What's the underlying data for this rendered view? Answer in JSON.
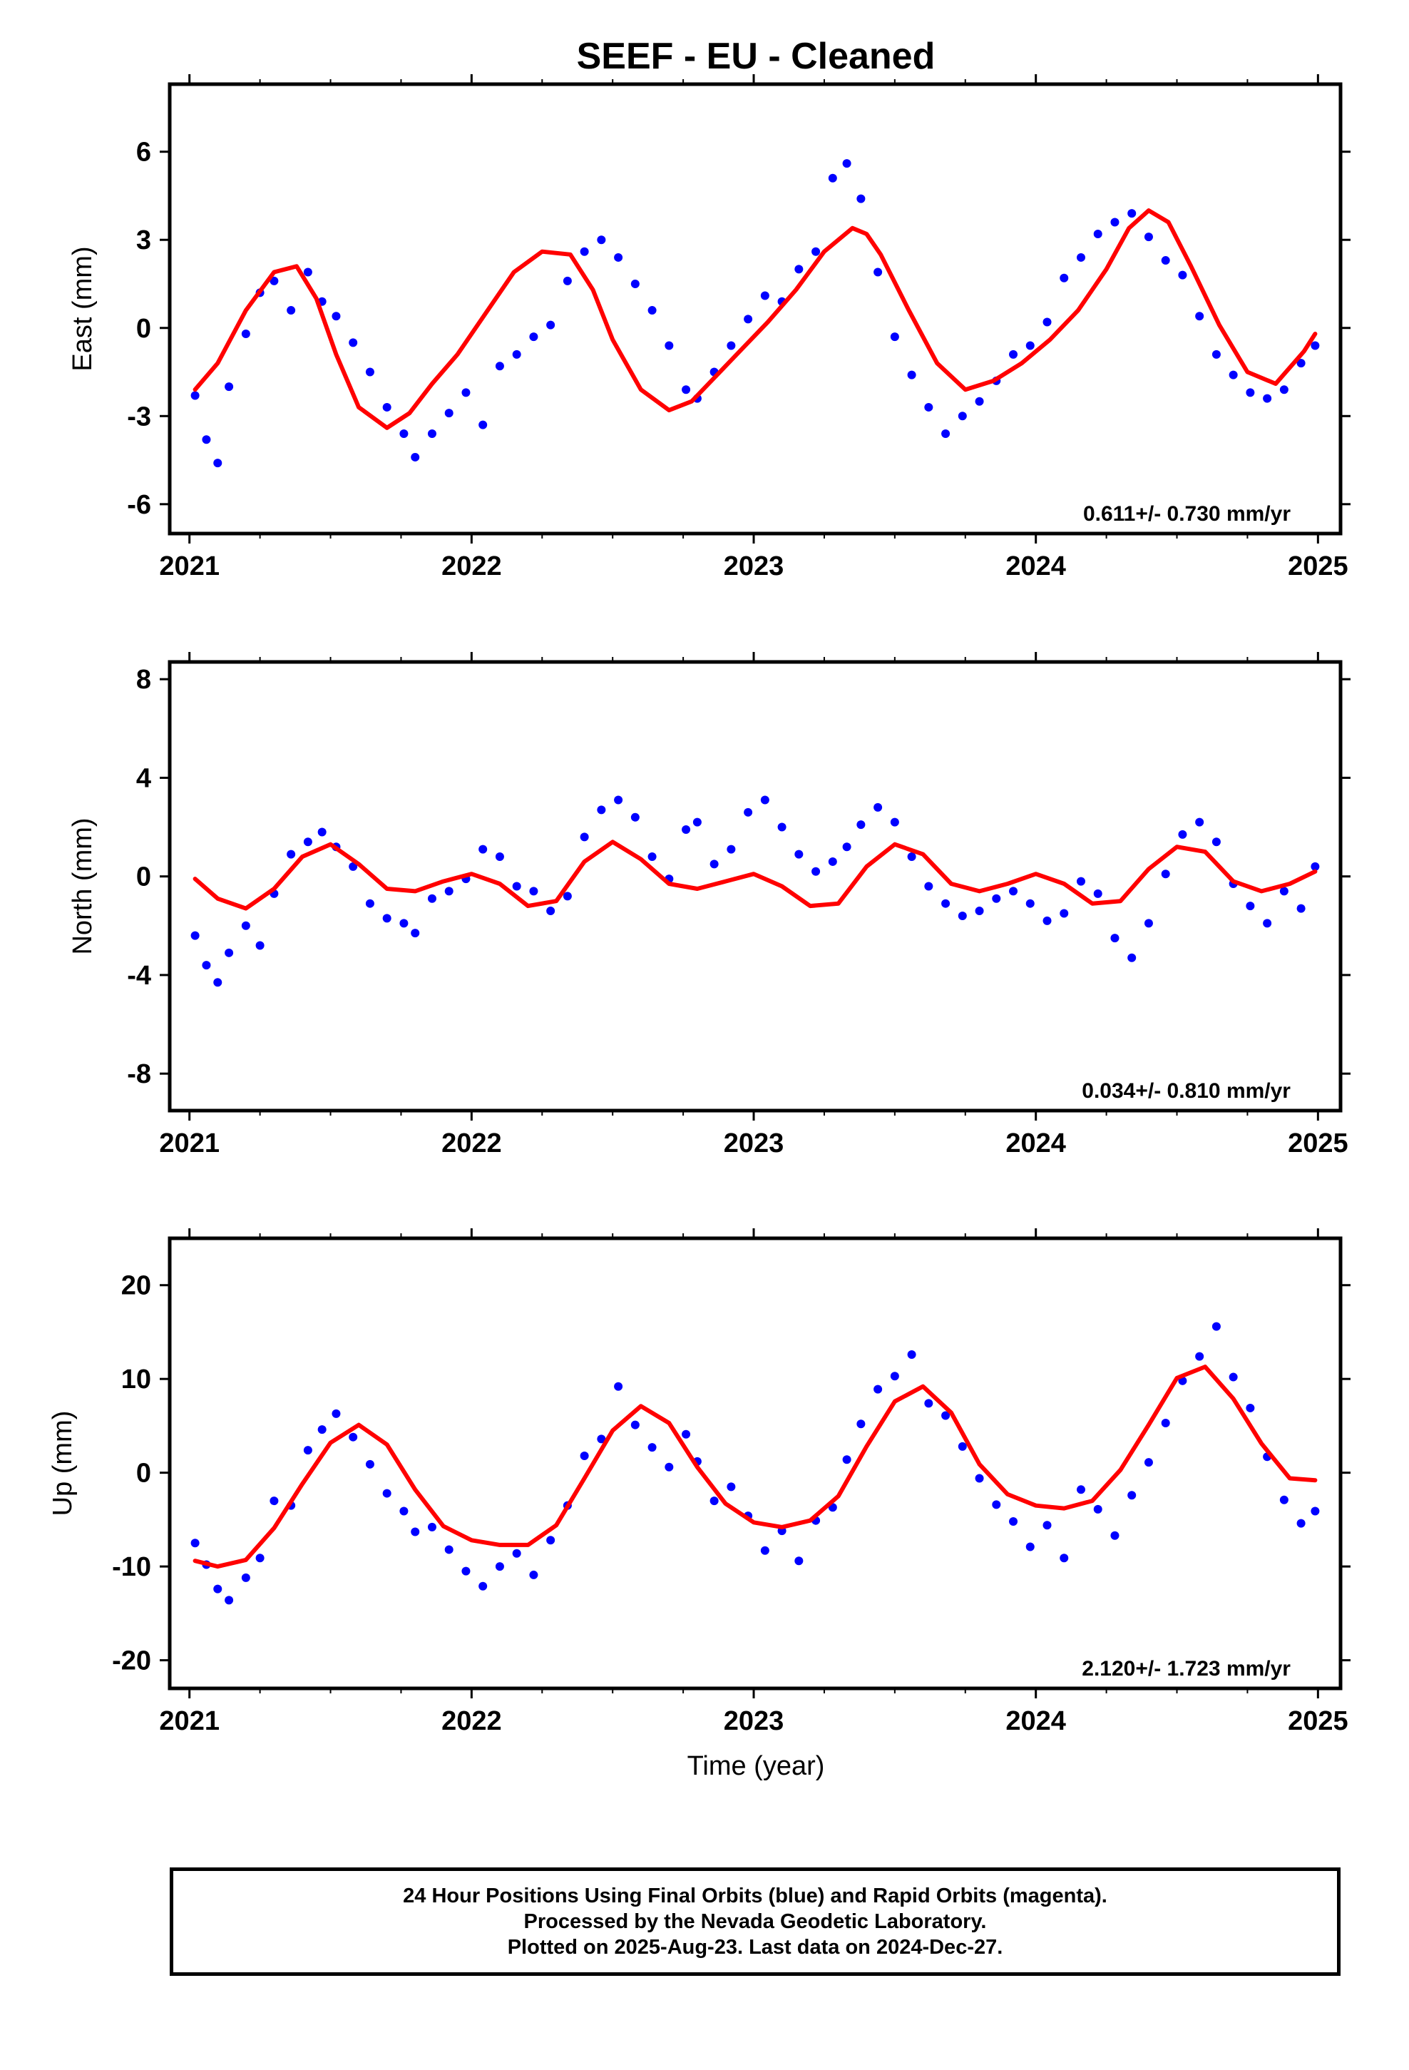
{
  "title": "SEEF  - EU - Cleaned",
  "xlabel": "Time (year)",
  "colors": {
    "final": "#0000ff",
    "model": "#ff0000",
    "rapid": "#ff00ff"
  },
  "footer": {
    "line1": "24 Hour Positions Using Final Orbits (blue) and Rapid Orbits (magenta).",
    "line2": "Processed by the Nevada Geodetic Laboratory.",
    "line3": "Plotted on 2025-Aug-23. Last data on 2024-Dec-27."
  },
  "chart_data": [
    {
      "type": "scatter",
      "ylabel": "East (mm)",
      "xlim": [
        2020.93,
        2025.08
      ],
      "ylim": [
        -7.0,
        8.3
      ],
      "xticks": [
        "2021",
        "2022",
        "2023",
        "2024",
        "2025"
      ],
      "yticks": [
        "-6",
        "-3",
        "0",
        "3",
        "6"
      ],
      "rate_text": "0.611+/- 0.730 mm/yr",
      "series": [
        {
          "role": "final-orbit-positions",
          "x": [
            2021.02,
            2021.06,
            2021.1,
            2021.14,
            2021.2,
            2021.25,
            2021.3,
            2021.36,
            2021.42,
            2021.47,
            2021.52,
            2021.58,
            2021.64,
            2021.7,
            2021.76,
            2021.8,
            2021.86,
            2021.92,
            2021.98,
            2022.04,
            2022.1,
            2022.16,
            2022.22,
            2022.28,
            2022.34,
            2022.4,
            2022.46,
            2022.52,
            2022.58,
            2022.64,
            2022.7,
            2022.76,
            2022.8,
            2022.86,
            2022.92,
            2022.98,
            2023.04,
            2023.1,
            2023.16,
            2023.22,
            2023.28,
            2023.33,
            2023.38,
            2023.44,
            2023.5,
            2023.56,
            2023.62,
            2023.68,
            2023.74,
            2023.8,
            2023.86,
            2023.92,
            2023.98,
            2024.04,
            2024.1,
            2024.16,
            2024.22,
            2024.28,
            2024.34,
            2024.4,
            2024.46,
            2024.52,
            2024.58,
            2024.64,
            2024.7,
            2024.76,
            2024.82,
            2024.88,
            2024.94,
            2024.99
          ],
          "y": [
            -2.3,
            -3.8,
            -4.6,
            -2.0,
            -0.2,
            1.2,
            1.6,
            0.6,
            1.9,
            0.9,
            0.4,
            -0.5,
            -1.5,
            -2.7,
            -3.6,
            -4.4,
            -3.6,
            -2.9,
            -2.2,
            -3.3,
            -1.3,
            -0.9,
            -0.3,
            0.1,
            1.6,
            2.6,
            3.0,
            2.4,
            1.5,
            0.6,
            -0.6,
            -2.1,
            -2.4,
            -1.5,
            -0.6,
            0.3,
            1.1,
            0.9,
            2.0,
            2.6,
            5.1,
            5.6,
            4.4,
            1.9,
            -0.3,
            -1.6,
            -2.7,
            -3.6,
            -3.0,
            -2.5,
            -1.8,
            -0.9,
            -0.6,
            0.2,
            1.7,
            2.4,
            3.2,
            3.6,
            3.9,
            3.1,
            2.3,
            1.8,
            0.4,
            -0.9,
            -1.6,
            -2.2,
            -2.4,
            -2.1,
            -1.2,
            -0.6
          ]
        },
        {
          "role": "seasonal-model-fit",
          "x": [
            2021.02,
            2021.1,
            2021.2,
            2021.3,
            2021.38,
            2021.45,
            2021.52,
            2021.6,
            2021.7,
            2021.78,
            2021.86,
            2021.95,
            2022.05,
            2022.15,
            2022.25,
            2022.35,
            2022.43,
            2022.5,
            2022.6,
            2022.7,
            2022.78,
            2022.86,
            2022.95,
            2023.05,
            2023.15,
            2023.25,
            2023.35,
            2023.4,
            2023.45,
            2023.55,
            2023.65,
            2023.75,
            2023.85,
            2023.95,
            2024.05,
            2024.15,
            2024.25,
            2024.33,
            2024.4,
            2024.47,
            2024.55,
            2024.65,
            2024.75,
            2024.85,
            2024.95,
            2024.99
          ],
          "y": [
            -2.1,
            -1.2,
            0.6,
            1.9,
            2.1,
            1.0,
            -0.9,
            -2.7,
            -3.4,
            -2.9,
            -1.9,
            -0.9,
            0.5,
            1.9,
            2.6,
            2.5,
            1.3,
            -0.4,
            -2.1,
            -2.8,
            -2.5,
            -1.7,
            -0.8,
            0.2,
            1.3,
            2.6,
            3.4,
            3.2,
            2.5,
            0.6,
            -1.2,
            -2.1,
            -1.8,
            -1.2,
            -0.4,
            0.6,
            2.0,
            3.4,
            4.0,
            3.6,
            2.1,
            0.1,
            -1.5,
            -1.9,
            -0.8,
            -0.2
          ]
        }
      ]
    },
    {
      "type": "scatter",
      "ylabel": "North (mm)",
      "xlim": [
        2020.93,
        2025.08
      ],
      "ylim": [
        -9.5,
        8.7
      ],
      "xticks": [
        "2021",
        "2022",
        "2023",
        "2024",
        "2025"
      ],
      "yticks": [
        "-8",
        "-4",
        "0",
        "4",
        "8"
      ],
      "rate_text": "0.034+/- 0.810 mm/yr",
      "series": [
        {
          "role": "final-orbit-positions",
          "x": [
            2021.02,
            2021.06,
            2021.1,
            2021.14,
            2021.2,
            2021.25,
            2021.3,
            2021.36,
            2021.42,
            2021.47,
            2021.52,
            2021.58,
            2021.64,
            2021.7,
            2021.76,
            2021.8,
            2021.86,
            2021.92,
            2021.98,
            2022.04,
            2022.1,
            2022.16,
            2022.22,
            2022.28,
            2022.34,
            2022.4,
            2022.46,
            2022.52,
            2022.58,
            2022.64,
            2022.7,
            2022.76,
            2022.8,
            2022.86,
            2022.92,
            2022.98,
            2023.04,
            2023.1,
            2023.16,
            2023.22,
            2023.28,
            2023.33,
            2023.38,
            2023.44,
            2023.5,
            2023.56,
            2023.62,
            2023.68,
            2023.74,
            2023.8,
            2023.86,
            2023.92,
            2023.98,
            2024.04,
            2024.1,
            2024.16,
            2024.22,
            2024.28,
            2024.34,
            2024.4,
            2024.46,
            2024.52,
            2024.58,
            2024.64,
            2024.7,
            2024.76,
            2024.82,
            2024.88,
            2024.94,
            2024.99
          ],
          "y": [
            -2.4,
            -3.6,
            -4.3,
            -3.1,
            -2.0,
            -2.8,
            -0.7,
            0.9,
            1.4,
            1.8,
            1.2,
            0.4,
            -1.1,
            -1.7,
            -1.9,
            -2.3,
            -0.9,
            -0.6,
            -0.1,
            1.1,
            0.8,
            -0.4,
            -0.6,
            -1.4,
            -0.8,
            1.6,
            2.7,
            3.1,
            2.4,
            0.8,
            -0.1,
            1.9,
            2.2,
            0.5,
            1.1,
            2.6,
            3.1,
            2.0,
            0.9,
            0.2,
            0.6,
            1.2,
            2.1,
            2.8,
            2.2,
            0.8,
            -0.4,
            -1.1,
            -1.6,
            -1.4,
            -0.9,
            -0.6,
            -1.1,
            -1.8,
            -1.5,
            -0.2,
            -0.7,
            -2.5,
            -3.3,
            -1.9,
            0.1,
            1.7,
            2.2,
            1.4,
            -0.3,
            -1.2,
            -1.9,
            -0.6,
            -1.3,
            0.4
          ]
        },
        {
          "role": "seasonal-model-fit",
          "x": [
            2021.02,
            2021.1,
            2021.2,
            2021.3,
            2021.4,
            2021.5,
            2021.6,
            2021.7,
            2021.8,
            2021.9,
            2022.0,
            2022.1,
            2022.2,
            2022.3,
            2022.4,
            2022.5,
            2022.6,
            2022.7,
            2022.8,
            2022.9,
            2023.0,
            2023.1,
            2023.2,
            2023.3,
            2023.4,
            2023.5,
            2023.6,
            2023.7,
            2023.8,
            2023.9,
            2024.0,
            2024.1,
            2024.2,
            2024.3,
            2024.4,
            2024.5,
            2024.6,
            2024.7,
            2024.8,
            2024.9,
            2024.99
          ],
          "y": [
            -0.1,
            -0.9,
            -1.3,
            -0.5,
            0.8,
            1.3,
            0.5,
            -0.5,
            -0.6,
            -0.2,
            0.1,
            -0.3,
            -1.2,
            -1.0,
            0.6,
            1.4,
            0.7,
            -0.3,
            -0.5,
            -0.2,
            0.1,
            -0.4,
            -1.2,
            -1.1,
            0.4,
            1.3,
            0.9,
            -0.3,
            -0.6,
            -0.3,
            0.1,
            -0.3,
            -1.1,
            -1.0,
            0.3,
            1.2,
            1.0,
            -0.2,
            -0.6,
            -0.3,
            0.2
          ]
        }
      ]
    },
    {
      "type": "scatter",
      "ylabel": "Up (mm)",
      "xlim": [
        2020.93,
        2025.08
      ],
      "ylim": [
        -23,
        25
      ],
      "xticks": [
        "2021",
        "2022",
        "2023",
        "2024",
        "2025"
      ],
      "yticks": [
        "-20",
        "-10",
        "0",
        "10",
        "20"
      ],
      "rate_text": "2.120+/- 1.723 mm/yr",
      "series": [
        {
          "role": "final-orbit-positions",
          "x": [
            2021.02,
            2021.06,
            2021.1,
            2021.14,
            2021.2,
            2021.25,
            2021.3,
            2021.36,
            2021.42,
            2021.47,
            2021.52,
            2021.58,
            2021.64,
            2021.7,
            2021.76,
            2021.8,
            2021.86,
            2021.92,
            2021.98,
            2022.04,
            2022.1,
            2022.16,
            2022.22,
            2022.28,
            2022.34,
            2022.4,
            2022.46,
            2022.52,
            2022.58,
            2022.64,
            2022.7,
            2022.76,
            2022.8,
            2022.86,
            2022.92,
            2022.98,
            2023.04,
            2023.1,
            2023.16,
            2023.22,
            2023.28,
            2023.33,
            2023.38,
            2023.44,
            2023.5,
            2023.56,
            2023.62,
            2023.68,
            2023.74,
            2023.8,
            2023.86,
            2023.92,
            2023.98,
            2024.04,
            2024.1,
            2024.16,
            2024.22,
            2024.28,
            2024.34,
            2024.4,
            2024.46,
            2024.52,
            2024.58,
            2024.64,
            2024.7,
            2024.76,
            2024.82,
            2024.88,
            2024.94,
            2024.99
          ],
          "y": [
            -7.5,
            -9.8,
            -12.4,
            -13.6,
            -11.2,
            -9.1,
            -3.0,
            -3.5,
            2.4,
            4.6,
            6.3,
            3.8,
            0.9,
            -2.2,
            -4.1,
            -6.3,
            -5.8,
            -8.2,
            -10.5,
            -12.1,
            -10.0,
            -8.6,
            -10.9,
            -7.2,
            -3.5,
            1.8,
            3.6,
            9.2,
            5.1,
            2.7,
            0.6,
            4.1,
            1.2,
            -3.0,
            -1.5,
            -4.6,
            -8.3,
            -6.2,
            -9.4,
            -5.1,
            -3.7,
            1.4,
            5.2,
            8.9,
            10.3,
            12.6,
            7.4,
            6.1,
            2.8,
            -0.6,
            -3.4,
            -5.2,
            -7.9,
            -5.6,
            -9.1,
            -1.8,
            -3.9,
            -6.7,
            -2.4,
            1.1,
            5.3,
            9.8,
            12.4,
            15.6,
            10.2,
            6.9,
            1.7,
            -2.9,
            -5.4,
            -4.1
          ]
        },
        {
          "role": "seasonal-model-fit",
          "x": [
            2021.02,
            2021.1,
            2021.2,
            2021.3,
            2021.4,
            2021.5,
            2021.6,
            2021.7,
            2021.8,
            2021.9,
            2022.0,
            2022.1,
            2022.2,
            2022.3,
            2022.4,
            2022.5,
            2022.6,
            2022.7,
            2022.8,
            2022.9,
            2023.0,
            2023.1,
            2023.2,
            2023.3,
            2023.4,
            2023.5,
            2023.6,
            2023.7,
            2023.8,
            2023.9,
            2024.0,
            2024.1,
            2024.2,
            2024.3,
            2024.4,
            2024.5,
            2024.6,
            2024.7,
            2024.8,
            2024.9,
            2024.99
          ],
          "y": [
            -9.4,
            -10.0,
            -9.3,
            -5.9,
            -1.2,
            3.2,
            5.1,
            3.0,
            -1.8,
            -5.7,
            -7.2,
            -7.7,
            -7.7,
            -5.6,
            -0.6,
            4.5,
            7.1,
            5.3,
            0.6,
            -3.3,
            -5.3,
            -5.8,
            -5.1,
            -2.5,
            2.8,
            7.6,
            9.2,
            6.4,
            0.9,
            -2.3,
            -3.5,
            -3.8,
            -3.0,
            0.3,
            5.1,
            10.1,
            11.3,
            7.9,
            3.1,
            -0.6,
            -0.8
          ]
        }
      ]
    }
  ]
}
